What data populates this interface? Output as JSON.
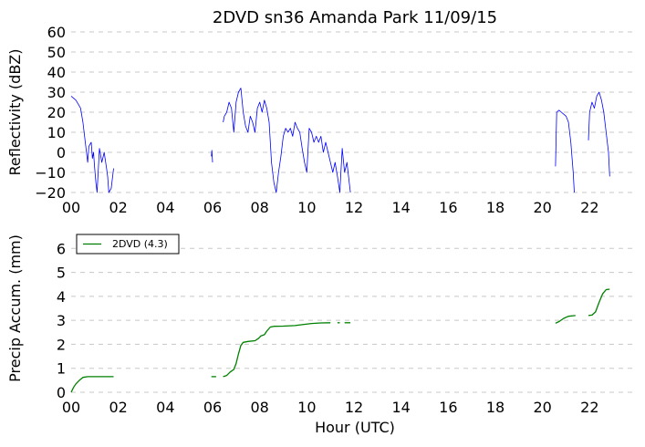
{
  "chart_data": [
    {
      "type": "line",
      "title": "2DVD sn36 Amanda Park 11/09/15",
      "xlabel": "",
      "ylabel": "Reflectivity (dBZ)",
      "xlim": [
        0,
        24
      ],
      "ylim": [
        -20,
        60
      ],
      "xticks": [
        0,
        2,
        4,
        6,
        8,
        10,
        12,
        14,
        16,
        18,
        20,
        22
      ],
      "xtick_labels": [
        "00",
        "02",
        "04",
        "06",
        "08",
        "10",
        "12",
        "14",
        "16",
        "18",
        "20",
        "22"
      ],
      "yticks": [
        -20,
        -10,
        0,
        10,
        20,
        30,
        40,
        50,
        60
      ],
      "ytick_labels": [
        "−20",
        "−10",
        "0",
        "10",
        "20",
        "30",
        "40",
        "50",
        "60"
      ],
      "grid": true,
      "color": "#0000ff",
      "segments": [
        [
          [
            0.0,
            28
          ],
          [
            0.1,
            27
          ],
          [
            0.2,
            26
          ],
          [
            0.3,
            24
          ],
          [
            0.4,
            22
          ],
          [
            0.5,
            15
          ],
          [
            0.6,
            5
          ],
          [
            0.7,
            -5
          ],
          [
            0.75,
            3
          ],
          [
            0.85,
            5
          ],
          [
            0.9,
            -3
          ],
          [
            0.95,
            0
          ],
          [
            1.0,
            -8
          ],
          [
            1.05,
            -15
          ],
          [
            1.1,
            -20
          ],
          [
            1.2,
            2
          ],
          [
            1.3,
            -5
          ],
          [
            1.4,
            0
          ],
          [
            1.5,
            -8
          ],
          [
            1.55,
            -12
          ],
          [
            1.6,
            -20
          ],
          [
            1.7,
            -18
          ],
          [
            1.8,
            -8
          ]
        ],
        [
          [
            5.95,
            -2
          ],
          [
            5.97,
            1
          ],
          [
            6.0,
            -5
          ]
        ],
        [
          [
            6.45,
            15
          ],
          [
            6.5,
            18
          ],
          [
            6.6,
            20
          ],
          [
            6.7,
            25
          ],
          [
            6.8,
            22
          ],
          [
            6.9,
            10
          ],
          [
            7.0,
            25
          ],
          [
            7.1,
            30
          ],
          [
            7.2,
            32
          ],
          [
            7.3,
            20
          ],
          [
            7.4,
            13
          ],
          [
            7.5,
            10
          ],
          [
            7.6,
            18
          ],
          [
            7.7,
            15
          ],
          [
            7.8,
            10
          ],
          [
            7.9,
            22
          ],
          [
            8.0,
            25
          ],
          [
            8.1,
            20
          ],
          [
            8.2,
            26
          ],
          [
            8.3,
            22
          ],
          [
            8.4,
            15
          ],
          [
            8.5,
            -5
          ],
          [
            8.6,
            -15
          ],
          [
            8.7,
            -20
          ],
          [
            8.8,
            -10
          ],
          [
            8.9,
            -2
          ],
          [
            9.0,
            8
          ],
          [
            9.1,
            12
          ],
          [
            9.2,
            10
          ],
          [
            9.3,
            12
          ],
          [
            9.4,
            8
          ],
          [
            9.5,
            15
          ],
          [
            9.6,
            12
          ],
          [
            9.7,
            10
          ],
          [
            9.8,
            2
          ],
          [
            9.9,
            -5
          ],
          [
            10.0,
            -10
          ],
          [
            10.1,
            12
          ],
          [
            10.2,
            10
          ],
          [
            10.3,
            5
          ],
          [
            10.4,
            8
          ],
          [
            10.5,
            5
          ],
          [
            10.6,
            8
          ],
          [
            10.7,
            0
          ],
          [
            10.8,
            5
          ],
          [
            10.9,
            0
          ],
          [
            11.0,
            -5
          ],
          [
            11.1,
            -10
          ],
          [
            11.2,
            -5
          ],
          [
            11.3,
            -12
          ],
          [
            11.4,
            -20
          ],
          [
            11.5,
            2
          ],
          [
            11.6,
            -10
          ],
          [
            11.7,
            -5
          ],
          [
            11.8,
            -15
          ],
          [
            11.85,
            -20
          ]
        ],
        [
          [
            20.55,
            -7
          ],
          [
            20.6,
            20
          ],
          [
            20.7,
            21
          ],
          [
            20.8,
            20
          ],
          [
            20.9,
            19
          ],
          [
            21.0,
            18
          ],
          [
            21.1,
            15
          ],
          [
            21.2,
            5
          ],
          [
            21.3,
            -10
          ],
          [
            21.35,
            -20
          ]
        ],
        [
          [
            21.95,
            6
          ],
          [
            22.0,
            20
          ],
          [
            22.1,
            25
          ],
          [
            22.2,
            22
          ],
          [
            22.3,
            28
          ],
          [
            22.4,
            30
          ],
          [
            22.5,
            26
          ],
          [
            22.6,
            20
          ],
          [
            22.7,
            10
          ],
          [
            22.8,
            0
          ],
          [
            22.85,
            -12
          ]
        ]
      ]
    },
    {
      "type": "line",
      "title": "",
      "xlabel": "Hour (UTC)",
      "ylabel": "Precip Accum. (mm)",
      "xlim": [
        0,
        24
      ],
      "ylim": [
        0,
        7
      ],
      "xticks": [
        0,
        2,
        4,
        6,
        8,
        10,
        12,
        14,
        16,
        18,
        20,
        22
      ],
      "xtick_labels": [
        "00",
        "02",
        "04",
        "06",
        "08",
        "10",
        "12",
        "14",
        "16",
        "18",
        "20",
        "22"
      ],
      "yticks": [
        0,
        1,
        2,
        3,
        4,
        5,
        6
      ],
      "ytick_labels": [
        "0",
        "1",
        "2",
        "3",
        "4",
        "5",
        "6"
      ],
      "grid": true,
      "legend": {
        "placement": "top-left",
        "entries": [
          {
            "label": "2DVD (4.3)",
            "color": "#008000"
          }
        ]
      },
      "series": [
        {
          "name": "2DVD (4.3)",
          "color": "#008000",
          "segments": [
            [
              [
                0.0,
                0.0
              ],
              [
                0.1,
                0.2
              ],
              [
                0.2,
                0.35
              ],
              [
                0.35,
                0.5
              ],
              [
                0.5,
                0.62
              ],
              [
                0.7,
                0.65
              ],
              [
                1.0,
                0.65
              ],
              [
                1.3,
                0.65
              ],
              [
                1.8,
                0.65
              ]
            ],
            [
              [
                5.95,
                0.65
              ],
              [
                6.15,
                0.65
              ]
            ],
            [
              [
                6.45,
                0.65
              ],
              [
                6.6,
                0.7
              ],
              [
                6.75,
                0.85
              ],
              [
                6.9,
                0.95
              ],
              [
                7.0,
                1.2
              ],
              [
                7.1,
                1.6
              ],
              [
                7.2,
                1.95
              ],
              [
                7.3,
                2.08
              ],
              [
                7.5,
                2.12
              ],
              [
                7.8,
                2.15
              ],
              [
                7.95,
                2.25
              ],
              [
                8.05,
                2.35
              ],
              [
                8.2,
                2.4
              ],
              [
                8.3,
                2.55
              ],
              [
                8.45,
                2.72
              ],
              [
                8.6,
                2.75
              ],
              [
                9.0,
                2.76
              ],
              [
                9.5,
                2.78
              ],
              [
                9.8,
                2.82
              ],
              [
                10.2,
                2.87
              ],
              [
                10.6,
                2.89
              ],
              [
                11.0,
                2.9
              ]
            ],
            [
              [
                11.3,
                2.9
              ],
              [
                11.4,
                2.9
              ]
            ],
            [
              [
                11.6,
                2.9
              ],
              [
                11.85,
                2.9
              ]
            ],
            [
              [
                20.55,
                2.88
              ],
              [
                20.7,
                2.95
              ],
              [
                20.9,
                3.08
              ],
              [
                21.1,
                3.17
              ],
              [
                21.3,
                3.19
              ],
              [
                21.4,
                3.2
              ]
            ],
            [
              [
                21.95,
                3.2
              ],
              [
                22.1,
                3.22
              ],
              [
                22.25,
                3.35
              ],
              [
                22.4,
                3.75
              ],
              [
                22.55,
                4.1
              ],
              [
                22.7,
                4.28
              ],
              [
                22.85,
                4.3
              ]
            ]
          ]
        }
      ]
    }
  ]
}
